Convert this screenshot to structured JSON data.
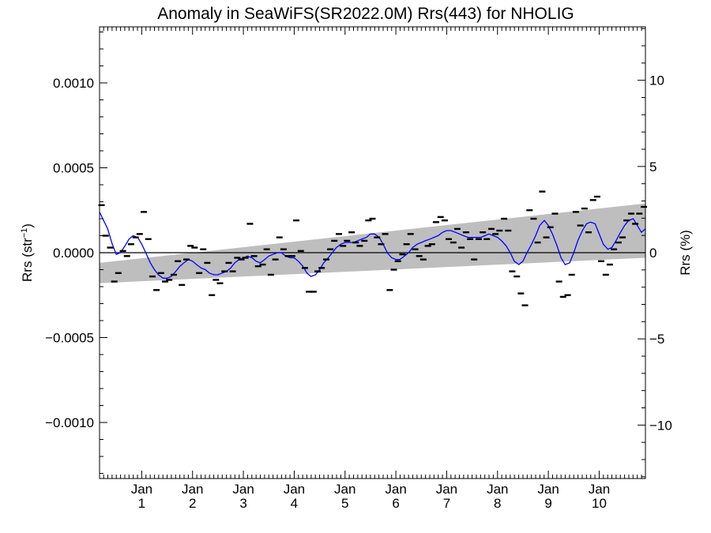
{
  "chart_data": {
    "type": "line",
    "title": "Anomaly in SeaWiFS(SR2022.0M) Rrs(443) for NHOLIG",
    "ylabel_left": "Rrs (str",
    "ylabel_left_exp": "−1",
    "ylabel_left_close": ")",
    "ylabel_right": "Rrs (%)",
    "xlim": [
      0.17,
      10.91
    ],
    "ylim": [
      -0.00133,
      0.00133
    ],
    "y2lim": [
      -13.1,
      13.1
    ],
    "x_ticks": [
      {
        "x": 1,
        "month": "Jan",
        "year": "1"
      },
      {
        "x": 2,
        "month": "Jan",
        "year": "2"
      },
      {
        "x": 3,
        "month": "Jan",
        "year": "3"
      },
      {
        "x": 4,
        "month": "Jan",
        "year": "4"
      },
      {
        "x": 5,
        "month": "Jan",
        "year": "5"
      },
      {
        "x": 6,
        "month": "Jan",
        "year": "6"
      },
      {
        "x": 7,
        "month": "Jan",
        "year": "7"
      },
      {
        "x": 8,
        "month": "Jan",
        "year": "8"
      },
      {
        "x": 9,
        "month": "Jan",
        "year": "9"
      },
      {
        "x": 10,
        "month": "Jan",
        "year": "10"
      }
    ],
    "y_ticks_left": [
      {
        "v": 0.001,
        "label": "0.0010"
      },
      {
        "v": 0.0005,
        "label": "0.0005"
      },
      {
        "v": 0.0,
        "label": "0.0000"
      },
      {
        "v": -0.0005,
        "label": "−0.0005"
      },
      {
        "v": -0.001,
        "label": "−0.0010"
      }
    ],
    "y_ticks_right": [
      {
        "v": 10,
        "label": "10"
      },
      {
        "v": 5,
        "label": "5"
      },
      {
        "v": 0,
        "label": "0"
      },
      {
        "v": -5,
        "label": "−5"
      },
      {
        "v": -10,
        "label": "−10"
      }
    ],
    "trend_band": {
      "lower": [
        -0.00018,
        -3e-05
      ],
      "upper": [
        -6e-05,
        0.00029
      ]
    },
    "zero_line": 0,
    "colors": {
      "smoothed": "#0000ff",
      "monthly": "#000000",
      "band": "#bebebe",
      "zero": "#000000"
    },
    "monthly_points": [
      [
        0.21,
        0.00028
      ],
      [
        0.29,
        0.0001
      ],
      [
        0.38,
        3e-05
      ],
      [
        0.46,
        -0.00017
      ],
      [
        0.54,
        -0.00012
      ],
      [
        0.63,
        1e-05
      ],
      [
        0.71,
        -2e-05
      ],
      [
        0.79,
        5e-05
      ],
      [
        0.88,
        9e-05
      ],
      [
        0.96,
        0.00011
      ],
      [
        1.04,
        0.00024
      ],
      [
        1.13,
        8e-05
      ],
      [
        1.21,
        -0.00014
      ],
      [
        1.29,
        -0.00022
      ],
      [
        1.38,
        -0.00012
      ],
      [
        1.46,
        -0.00017
      ],
      [
        1.54,
        -0.00016
      ],
      [
        1.63,
        -0.00013
      ],
      [
        1.71,
        -5e-05
      ],
      [
        1.79,
        -0.00019
      ],
      [
        1.88,
        -4e-05
      ],
      [
        1.96,
        4e-05
      ],
      [
        2.04,
        3e-05
      ],
      [
        2.13,
        -0.00012
      ],
      [
        2.21,
        2e-05
      ],
      [
        2.29,
        -6e-05
      ],
      [
        2.38,
        -0.00025
      ],
      [
        2.46,
        -0.00016
      ],
      [
        2.54,
        -0.00018
      ],
      [
        2.63,
        -0.00011
      ],
      [
        2.71,
        -6e-05
      ],
      [
        2.79,
        -0.00011
      ],
      [
        2.88,
        -3e-05
      ],
      [
        2.96,
        -4e-05
      ],
      [
        3.04,
        -3e-05
      ],
      [
        3.13,
        0.00017
      ],
      [
        3.21,
        -2e-05
      ],
      [
        3.29,
        -8e-05
      ],
      [
        3.38,
        -7e-05
      ],
      [
        3.46,
        2e-05
      ],
      [
        3.54,
        -0.00013
      ],
      [
        3.63,
        -4e-05
      ],
      [
        3.71,
        9e-05
      ],
      [
        3.79,
        2e-05
      ],
      [
        3.88,
        -2e-05
      ],
      [
        3.96,
        -2e-05
      ],
      [
        4.04,
        0.00019
      ],
      [
        4.13,
        1e-05
      ],
      [
        4.21,
        -9e-05
      ],
      [
        4.29,
        -0.00023
      ],
      [
        4.38,
        -0.00023
      ],
      [
        4.46,
        -0.00011
      ],
      [
        4.54,
        -9e-05
      ],
      [
        4.63,
        -4e-05
      ],
      [
        4.71,
        2e-05
      ],
      [
        4.79,
        7e-05
      ],
      [
        4.88,
        0.00011
      ],
      [
        4.96,
        4e-05
      ],
      [
        5.04,
        7e-05
      ],
      [
        5.13,
        0.00012
      ],
      [
        5.21,
        6e-05
      ],
      [
        5.29,
        4e-05
      ],
      [
        5.38,
        7e-05
      ],
      [
        5.46,
        0.00019
      ],
      [
        5.54,
        0.0002
      ],
      [
        5.63,
        9e-05
      ],
      [
        5.71,
        5e-05
      ],
      [
        5.79,
        0.00011
      ],
      [
        5.88,
        -0.00022
      ],
      [
        5.96,
        -0.0001
      ],
      [
        6.04,
        -5e-05
      ],
      [
        6.13,
        -1e-05
      ],
      [
        6.21,
        5e-05
      ],
      [
        6.29,
        0.00011
      ],
      [
        6.38,
        2e-05
      ],
      [
        6.46,
        -2e-05
      ],
      [
        6.54,
        -4e-05
      ],
      [
        6.63,
        4e-05
      ],
      [
        6.71,
        5e-05
      ],
      [
        6.79,
        0.00018
      ],
      [
        6.88,
        0.00021
      ],
      [
        6.96,
        0.00019
      ],
      [
        7.04,
        8e-05
      ],
      [
        7.13,
        6e-05
      ],
      [
        7.21,
        0.00014
      ],
      [
        7.29,
        3e-05
      ],
      [
        7.38,
        0.00012
      ],
      [
        7.46,
        8e-05
      ],
      [
        7.54,
        -4e-05
      ],
      [
        7.63,
        8e-05
      ],
      [
        7.71,
        0.00012
      ],
      [
        7.79,
        8e-05
      ],
      [
        7.88,
        0.00014
      ],
      [
        7.96,
        0.00011
      ],
      [
        8.04,
        0.00013
      ],
      [
        8.13,
        0.0002
      ],
      [
        8.21,
        0.00013
      ],
      [
        8.29,
        -0.00011
      ],
      [
        8.38,
        -0.00014
      ],
      [
        8.46,
        -0.00024
      ],
      [
        8.54,
        -0.00031
      ],
      [
        8.63,
        0.00025
      ],
      [
        8.71,
        0.0002
      ],
      [
        8.79,
        6e-05
      ],
      [
        8.88,
        0.00036
      ],
      [
        8.96,
        9e-05
      ],
      [
        9.04,
        0.00015
      ],
      [
        9.13,
        0.00023
      ],
      [
        9.21,
        -0.00017
      ],
      [
        9.29,
        -0.00026
      ],
      [
        9.38,
        -0.00025
      ],
      [
        9.46,
        -0.00013
      ],
      [
        9.54,
        0.00024
      ],
      [
        9.63,
        0.00016
      ],
      [
        9.71,
        0.00026
      ],
      [
        9.79,
        0.00012
      ],
      [
        9.88,
        0.00031
      ],
      [
        9.96,
        0.00033
      ],
      [
        10.04,
        -5e-05
      ],
      [
        10.13,
        -0.00013
      ],
      [
        10.21,
        -7e-05
      ],
      [
        10.29,
        2e-05
      ],
      [
        10.38,
        6e-05
      ],
      [
        10.46,
        9e-05
      ],
      [
        10.54,
        0.00019
      ],
      [
        10.63,
        0.00023
      ],
      [
        10.71,
        0.00017
      ],
      [
        10.79,
        0.00023
      ],
      [
        10.88,
        0.00027
      ]
    ],
    "smoothed_line": [
      [
        0.17,
        0.00024
      ],
      [
        0.25,
        0.00019
      ],
      [
        0.33,
        0.00014
      ],
      [
        0.42,
        5e-05
      ],
      [
        0.5,
        -1e-05
      ],
      [
        0.58,
        0.0
      ],
      [
        0.67,
        4e-05
      ],
      [
        0.75,
        8e-05
      ],
      [
        0.83,
        0.0001
      ],
      [
        0.92,
        9e-05
      ],
      [
        1.0,
        5e-05
      ],
      [
        1.08,
        0.0
      ],
      [
        1.17,
        -6e-05
      ],
      [
        1.25,
        -0.0001
      ],
      [
        1.33,
        -0.00013
      ],
      [
        1.42,
        -0.00015
      ],
      [
        1.5,
        -0.00015
      ],
      [
        1.58,
        -0.00014
      ],
      [
        1.67,
        -0.00011
      ],
      [
        1.75,
        -8e-05
      ],
      [
        1.83,
        -6e-05
      ],
      [
        1.92,
        -4e-05
      ],
      [
        2.0,
        -5e-05
      ],
      [
        2.08,
        -7e-05
      ],
      [
        2.17,
        -9e-05
      ],
      [
        2.25,
        -0.0001
      ],
      [
        2.33,
        -0.00012
      ],
      [
        2.42,
        -0.00013
      ],
      [
        2.5,
        -0.00013
      ],
      [
        2.58,
        -0.00012
      ],
      [
        2.67,
        -0.00011
      ],
      [
        2.75,
        -9e-05
      ],
      [
        2.83,
        -6e-05
      ],
      [
        2.92,
        -4e-05
      ],
      [
        3.0,
        -3e-05
      ],
      [
        3.08,
        -2e-05
      ],
      [
        3.17,
        -3e-05
      ],
      [
        3.25,
        -5e-05
      ],
      [
        3.33,
        -6e-05
      ],
      [
        3.42,
        -4e-05
      ],
      [
        3.5,
        -2e-05
      ],
      [
        3.58,
        -1e-05
      ],
      [
        3.67,
        0.0
      ],
      [
        3.75,
        0.0
      ],
      [
        3.83,
        -2e-05
      ],
      [
        3.92,
        -3e-05
      ],
      [
        4.0,
        -3e-05
      ],
      [
        4.08,
        -5e-05
      ],
      [
        4.17,
        -8e-05
      ],
      [
        4.25,
        -0.00012
      ],
      [
        4.33,
        -0.00014
      ],
      [
        4.42,
        -0.00013
      ],
      [
        4.5,
        -0.0001
      ],
      [
        4.58,
        -6e-05
      ],
      [
        4.67,
        -3e-05
      ],
      [
        4.75,
        0.0
      ],
      [
        4.83,
        3e-05
      ],
      [
        4.92,
        5e-05
      ],
      [
        5.0,
        6e-05
      ],
      [
        5.08,
        6e-05
      ],
      [
        5.17,
        6e-05
      ],
      [
        5.25,
        7e-05
      ],
      [
        5.33,
        8e-05
      ],
      [
        5.42,
        9e-05
      ],
      [
        5.5,
        0.00011
      ],
      [
        5.58,
        0.00011
      ],
      [
        5.67,
        9e-05
      ],
      [
        5.75,
        5e-05
      ],
      [
        5.83,
        0.0
      ],
      [
        5.92,
        -3e-05
      ],
      [
        6.0,
        -4e-05
      ],
      [
        6.08,
        -4e-05
      ],
      [
        6.17,
        -2e-05
      ],
      [
        6.25,
        0.0
      ],
      [
        6.33,
        3e-05
      ],
      [
        6.42,
        5e-05
      ],
      [
        6.5,
        6e-05
      ],
      [
        6.58,
        7e-05
      ],
      [
        6.67,
        8e-05
      ],
      [
        6.75,
        9e-05
      ],
      [
        6.83,
        0.0001
      ],
      [
        6.92,
        0.00012
      ],
      [
        7.0,
        0.00013
      ],
      [
        7.08,
        0.00013
      ],
      [
        7.17,
        0.00012
      ],
      [
        7.25,
        0.00011
      ],
      [
        7.33,
        0.0001
      ],
      [
        7.42,
        9e-05
      ],
      [
        7.5,
        9e-05
      ],
      [
        7.58,
        9e-05
      ],
      [
        7.67,
        9e-05
      ],
      [
        7.75,
        0.0001
      ],
      [
        7.83,
        0.00011
      ],
      [
        7.92,
        0.0001
      ],
      [
        8.0,
        9e-05
      ],
      [
        8.08,
        7e-05
      ],
      [
        8.17,
        4e-05
      ],
      [
        8.25,
        0.0
      ],
      [
        8.33,
        -5e-05
      ],
      [
        8.42,
        -7e-05
      ],
      [
        8.5,
        -5e-05
      ],
      [
        8.58,
        0.0
      ],
      [
        8.67,
        5e-05
      ],
      [
        8.75,
        0.0001
      ],
      [
        8.83,
        0.00016
      ],
      [
        8.92,
        0.00019
      ],
      [
        9.0,
        0.00016
      ],
      [
        9.08,
        0.00011
      ],
      [
        9.17,
        4e-05
      ],
      [
        9.25,
        -3e-05
      ],
      [
        9.33,
        -7e-05
      ],
      [
        9.42,
        -6e-05
      ],
      [
        9.5,
        0.0
      ],
      [
        9.58,
        7e-05
      ],
      [
        9.67,
        0.00013
      ],
      [
        9.75,
        0.00017
      ],
      [
        9.83,
        0.00018
      ],
      [
        9.92,
        0.00017
      ],
      [
        10.0,
        0.00011
      ],
      [
        10.08,
        5e-05
      ],
      [
        10.17,
        2e-05
      ],
      [
        10.25,
        3e-05
      ],
      [
        10.33,
        7e-05
      ],
      [
        10.42,
        0.00012
      ],
      [
        10.5,
        0.00016
      ],
      [
        10.58,
        0.00019
      ],
      [
        10.67,
        0.0002
      ],
      [
        10.75,
        0.00016
      ],
      [
        10.83,
        0.00012
      ],
      [
        10.91,
        0.00014
      ]
    ]
  }
}
